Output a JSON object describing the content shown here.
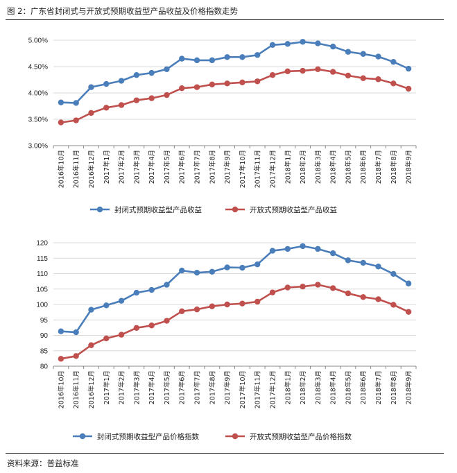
{
  "figure": {
    "title": "图 2：广东省封闭式与开放式预期收益型产品收益及价格指数走势",
    "source": "资料来源：普益标准"
  },
  "colors": {
    "closed": "#4a7ebb",
    "open": "#c0504d",
    "grid": "#d9d9d9",
    "axis": "#888888"
  },
  "chart_data": [
    {
      "type": "line",
      "title": "",
      "xlabel": "",
      "ylabel": "",
      "categories": [
        "2016年10月",
        "2016年11月",
        "2016年12月",
        "2017年1月",
        "2017年2月",
        "2017年3月",
        "2017年4月",
        "2017年5月",
        "2017年6月",
        "2017年7月",
        "2017年8月",
        "2017年9月",
        "2017年10月",
        "2017年11月",
        "2017年12月",
        "2018年1月",
        "2018年2月",
        "2018年3月",
        "2018年4月",
        "2018年5月",
        "2018年6月",
        "2018年7月",
        "2018年8月",
        "2018年9月"
      ],
      "ylim": [
        3.0,
        5.0
      ],
      "yticks": [
        3.0,
        3.5,
        4.0,
        4.5,
        5.0
      ],
      "ytick_labels": [
        "3.00%",
        "3.50%",
        "4.00%",
        "4.50%",
        "5.00%"
      ],
      "series": [
        {
          "name": "封闭式预期收益型产品收益",
          "color_key": "closed",
          "values": [
            3.82,
            3.81,
            4.11,
            4.17,
            4.23,
            4.34,
            4.38,
            4.45,
            4.65,
            4.62,
            4.62,
            4.68,
            4.68,
            4.72,
            4.91,
            4.93,
            4.97,
            4.94,
            4.88,
            4.78,
            4.74,
            4.69,
            4.59,
            4.46
          ]
        },
        {
          "name": "开放式预期收益型产品收益",
          "color_key": "open",
          "values": [
            3.44,
            3.48,
            3.62,
            3.72,
            3.77,
            3.86,
            3.9,
            3.96,
            4.09,
            4.11,
            4.16,
            4.18,
            4.2,
            4.22,
            4.34,
            4.41,
            4.42,
            4.45,
            4.4,
            4.33,
            4.28,
            4.26,
            4.18,
            4.08
          ]
        }
      ]
    },
    {
      "type": "line",
      "title": "",
      "xlabel": "",
      "ylabel": "",
      "categories": [
        "2016年10月",
        "2016年11月",
        "2016年12月",
        "2017年1月",
        "2017年2月",
        "2017年3月",
        "2017年4月",
        "2017年5月",
        "2017年6月",
        "2017年7月",
        "2017年8月",
        "2017年9月",
        "2017年10月",
        "2017年11月",
        "2017年12月",
        "2018年1月",
        "2018年2月",
        "2018年3月",
        "2018年4月",
        "2018年5月",
        "2018年6月",
        "2018年7月",
        "2018年8月",
        "2018年9月"
      ],
      "ylim": [
        80,
        120
      ],
      "yticks": [
        80,
        85,
        90,
        95,
        100,
        105,
        110,
        115,
        120
      ],
      "ytick_labels": [
        "80",
        "85",
        "90",
        "95",
        "100",
        "105",
        "110",
        "115",
        "120"
      ],
      "series": [
        {
          "name": "封闭式预期收益型产品价格指数",
          "color_key": "closed",
          "values": [
            91.3,
            91.0,
            98.3,
            99.7,
            101.2,
            103.8,
            104.7,
            106.4,
            111.0,
            110.3,
            110.6,
            112.0,
            111.9,
            113.0,
            117.4,
            118.0,
            118.9,
            118.0,
            116.6,
            114.3,
            113.5,
            112.3,
            109.9,
            106.8
          ]
        },
        {
          "name": "开放式预期收益型产品价格指数",
          "color_key": "open",
          "values": [
            82.4,
            83.3,
            86.8,
            89.0,
            90.2,
            92.4,
            93.2,
            94.7,
            97.8,
            98.4,
            99.4,
            100.0,
            100.3,
            100.9,
            103.9,
            105.5,
            105.8,
            106.4,
            105.3,
            103.6,
            102.4,
            101.7,
            99.9,
            97.6
          ]
        }
      ]
    }
  ]
}
